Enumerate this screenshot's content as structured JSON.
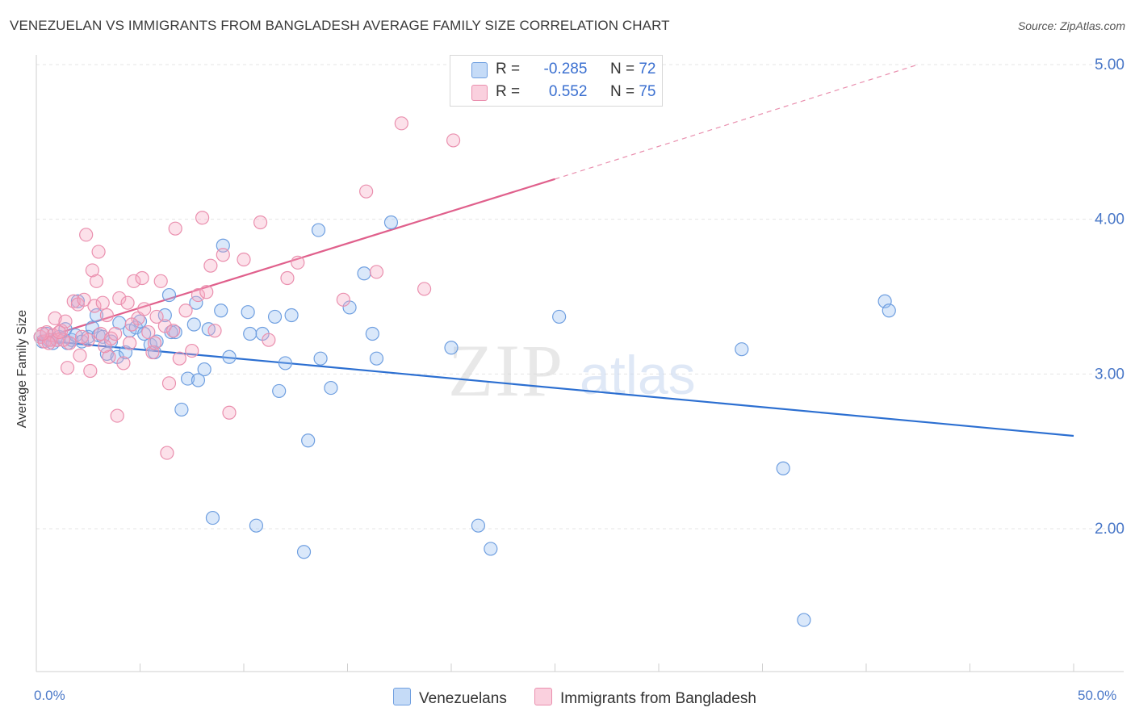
{
  "title": "VENEZUELAN VS IMMIGRANTS FROM BANGLADESH AVERAGE FAMILY SIZE CORRELATION CHART",
  "source": "Source: ZipAtlas.com",
  "watermark": {
    "zip": "ZIP",
    "atlas": "atlas"
  },
  "colors": {
    "blue": "#6f9fe0",
    "blue_fill": "rgba(150,190,240,0.35)",
    "blue_line": "#2c6fd1",
    "pink": "#ea8fae",
    "pink_fill": "rgba(245,170,195,0.35)",
    "pink_line": "#e0608c",
    "axis_text": "#4a78c8",
    "grid": "#e5e5e5"
  },
  "legend": {
    "r_label": "R =",
    "n_label": "N =",
    "rows": [
      {
        "r": "-0.285",
        "n": "72",
        "color": "blue"
      },
      {
        "r": "0.552",
        "n": "75",
        "color": "pink"
      }
    ]
  },
  "bottom_legend": [
    {
      "label": "Venezuelans",
      "color": "blue"
    },
    {
      "label": "Immigrants from Bangladesh",
      "color": "pink"
    }
  ],
  "chart_data": {
    "type": "scatter",
    "xlabel": "",
    "ylabel": "Average Family Size",
    "xlim": [
      0,
      50
    ],
    "ylim": [
      1.0,
      5.1
    ],
    "x_tick_labels": [
      "0.0%",
      "50.0%"
    ],
    "y_ticks": [
      2.0,
      3.0,
      4.0,
      5.0
    ],
    "y_tick_labels": [
      "2.00",
      "3.00",
      "4.00",
      "5.00"
    ],
    "grid": "horizontal dashed",
    "series": [
      {
        "name": "Venezuelans",
        "color": "blue",
        "trend": {
          "x": [
            0,
            50
          ],
          "y": [
            3.22,
            2.6
          ],
          "dashed_after": null
        },
        "points": [
          [
            0.2,
            3.24
          ],
          [
            0.3,
            3.21
          ],
          [
            0.5,
            3.26
          ],
          [
            0.6,
            3.22
          ],
          [
            0.8,
            3.2
          ],
          [
            1.0,
            3.22
          ],
          [
            1.1,
            3.24
          ],
          [
            1.4,
            3.29
          ],
          [
            1.5,
            3.2
          ],
          [
            1.7,
            3.22
          ],
          [
            1.9,
            3.25
          ],
          [
            2.0,
            3.47
          ],
          [
            2.2,
            3.21
          ],
          [
            2.5,
            3.24
          ],
          [
            2.7,
            3.3
          ],
          [
            2.9,
            3.38
          ],
          [
            3.0,
            3.25
          ],
          [
            3.2,
            3.24
          ],
          [
            3.4,
            3.13
          ],
          [
            3.6,
            3.21
          ],
          [
            3.9,
            3.11
          ],
          [
            4.0,
            3.33
          ],
          [
            4.3,
            3.14
          ],
          [
            4.5,
            3.28
          ],
          [
            4.8,
            3.3
          ],
          [
            5.0,
            3.34
          ],
          [
            5.2,
            3.26
          ],
          [
            5.5,
            3.19
          ],
          [
            5.7,
            3.14
          ],
          [
            5.8,
            3.21
          ],
          [
            6.2,
            3.38
          ],
          [
            6.4,
            3.51
          ],
          [
            6.5,
            3.27
          ],
          [
            6.7,
            3.27
          ],
          [
            7.0,
            2.77
          ],
          [
            7.3,
            2.97
          ],
          [
            7.8,
            2.96
          ],
          [
            7.6,
            3.32
          ],
          [
            7.7,
            3.46
          ],
          [
            8.1,
            3.03
          ],
          [
            8.3,
            3.29
          ],
          [
            8.5,
            2.07
          ],
          [
            8.9,
            3.41
          ],
          [
            9.0,
            3.83
          ],
          [
            9.3,
            3.11
          ],
          [
            10.2,
            3.4
          ],
          [
            10.3,
            3.26
          ],
          [
            10.6,
            2.02
          ],
          [
            10.9,
            3.26
          ],
          [
            11.5,
            3.37
          ],
          [
            11.7,
            2.89
          ],
          [
            12.0,
            3.07
          ],
          [
            12.3,
            3.38
          ],
          [
            12.9,
            1.85
          ],
          [
            13.1,
            2.57
          ],
          [
            13.6,
            3.93
          ],
          [
            13.7,
            3.1
          ],
          [
            14.2,
            2.91
          ],
          [
            15.1,
            3.43
          ],
          [
            15.8,
            3.65
          ],
          [
            16.2,
            3.26
          ],
          [
            16.4,
            3.1
          ],
          [
            17.1,
            3.98
          ],
          [
            20.0,
            3.17
          ],
          [
            21.3,
            2.02
          ],
          [
            21.9,
            1.87
          ],
          [
            25.2,
            3.37
          ],
          [
            34.0,
            3.16
          ],
          [
            36.0,
            2.39
          ],
          [
            37.0,
            1.41
          ],
          [
            40.9,
            3.47
          ],
          [
            41.1,
            3.41
          ]
        ]
      },
      {
        "name": "Immigrants from Bangladesh",
        "color": "pink",
        "trend": {
          "x": [
            0,
            25,
            42.5
          ],
          "y": [
            3.22,
            4.26,
            5.0
          ],
          "dashed_after": 25
        },
        "points": [
          [
            0.2,
            3.24
          ],
          [
            0.4,
            3.21
          ],
          [
            0.5,
            3.27
          ],
          [
            0.7,
            3.22
          ],
          [
            0.8,
            3.25
          ],
          [
            0.9,
            3.36
          ],
          [
            1.0,
            3.22
          ],
          [
            1.2,
            3.28
          ],
          [
            1.4,
            3.34
          ],
          [
            1.5,
            3.04
          ],
          [
            1.6,
            3.2
          ],
          [
            1.8,
            3.47
          ],
          [
            2.0,
            3.45
          ],
          [
            2.1,
            3.12
          ],
          [
            2.3,
            3.48
          ],
          [
            2.4,
            3.9
          ],
          [
            2.5,
            3.22
          ],
          [
            2.6,
            3.02
          ],
          [
            2.7,
            3.67
          ],
          [
            2.8,
            3.44
          ],
          [
            2.9,
            3.6
          ],
          [
            3.0,
            3.79
          ],
          [
            3.1,
            3.26
          ],
          [
            3.2,
            3.46
          ],
          [
            3.4,
            3.38
          ],
          [
            3.5,
            3.11
          ],
          [
            3.6,
            3.23
          ],
          [
            3.8,
            3.26
          ],
          [
            3.9,
            2.73
          ],
          [
            4.0,
            3.49
          ],
          [
            4.2,
            3.07
          ],
          [
            4.4,
            3.46
          ],
          [
            4.5,
            3.2
          ],
          [
            4.7,
            3.6
          ],
          [
            4.9,
            3.36
          ],
          [
            5.1,
            3.62
          ],
          [
            5.2,
            3.42
          ],
          [
            5.4,
            3.27
          ],
          [
            5.6,
            3.14
          ],
          [
            5.7,
            3.2
          ],
          [
            5.8,
            3.37
          ],
          [
            6.0,
            3.6
          ],
          [
            6.2,
            3.31
          ],
          [
            6.3,
            2.49
          ],
          [
            6.4,
            2.94
          ],
          [
            6.6,
            3.28
          ],
          [
            6.7,
            3.94
          ],
          [
            6.9,
            3.1
          ],
          [
            7.2,
            3.41
          ],
          [
            7.5,
            3.15
          ],
          [
            7.8,
            3.51
          ],
          [
            8.0,
            4.01
          ],
          [
            8.2,
            3.53
          ],
          [
            8.4,
            3.7
          ],
          [
            8.6,
            3.28
          ],
          [
            9.0,
            3.77
          ],
          [
            9.3,
            2.75
          ],
          [
            10.0,
            3.74
          ],
          [
            10.8,
            3.98
          ],
          [
            11.2,
            3.22
          ],
          [
            12.1,
            3.62
          ],
          [
            12.6,
            3.72
          ],
          [
            14.8,
            3.48
          ],
          [
            15.9,
            4.18
          ],
          [
            16.4,
            3.66
          ],
          [
            17.6,
            4.62
          ],
          [
            18.7,
            3.55
          ],
          [
            20.1,
            4.51
          ],
          [
            1.3,
            3.22
          ],
          [
            0.6,
            3.2
          ],
          [
            3.3,
            3.18
          ],
          [
            2.2,
            3.24
          ],
          [
            1.1,
            3.27
          ],
          [
            0.3,
            3.26
          ],
          [
            4.6,
            3.32
          ]
        ]
      }
    ]
  }
}
